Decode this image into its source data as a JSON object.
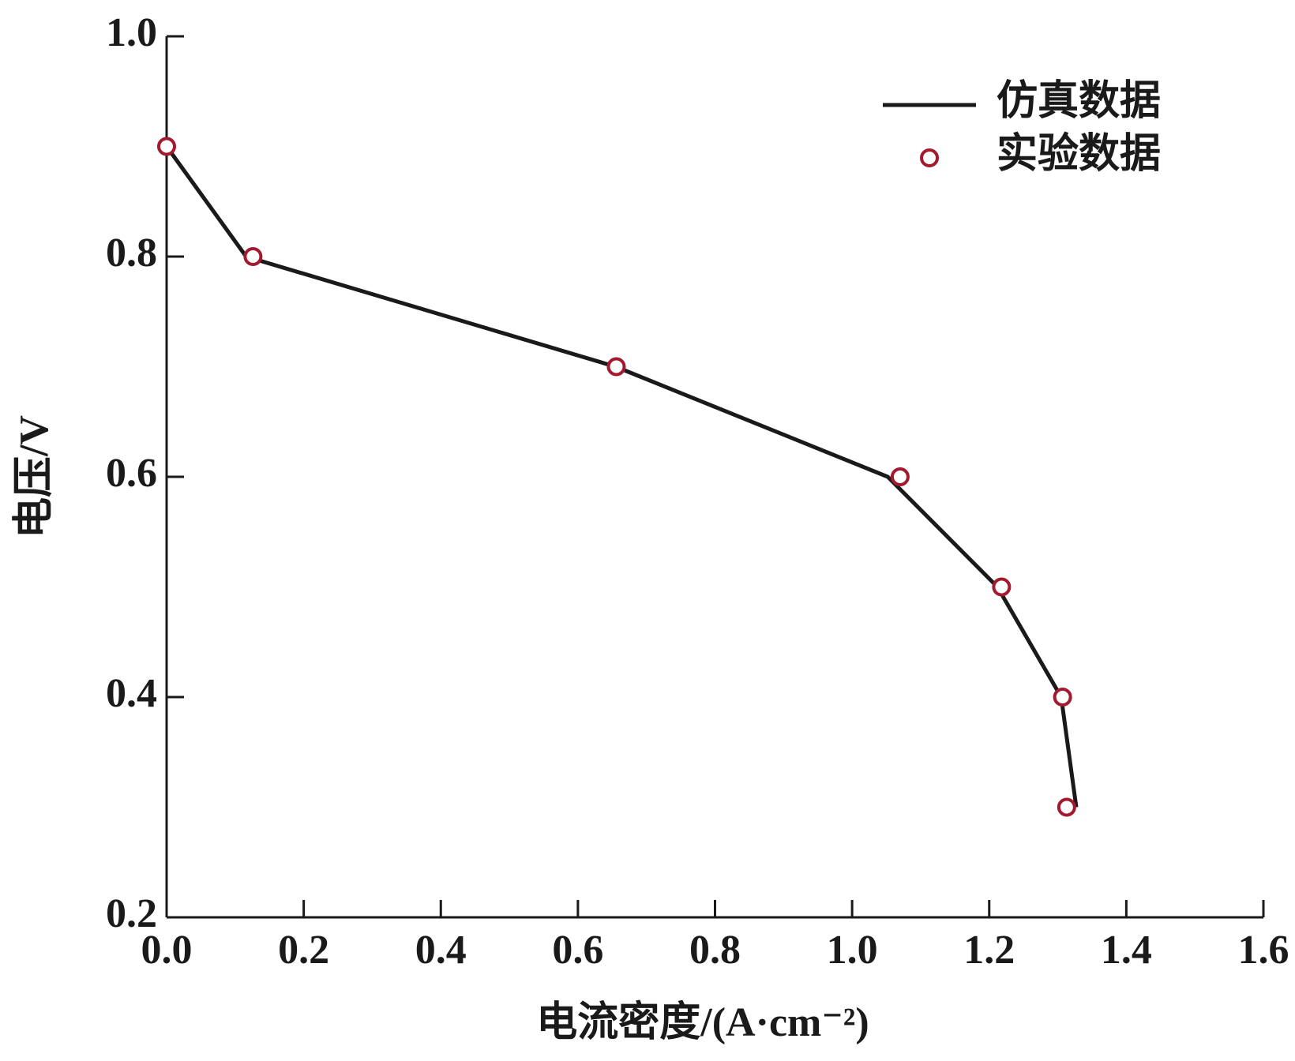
{
  "chart_data": {
    "type": "line",
    "x_label": "电流密度/(A·cm⁻²)",
    "y_label": "电压/V",
    "xlim": [
      0,
      1.6
    ],
    "ylim": [
      0.2,
      1.0
    ],
    "xticks": [
      {
        "value": 0,
        "label": "0.0"
      },
      0.2,
      0.4,
      0.6,
      0.8,
      {
        "value": 1,
        "label": "1.0"
      },
      1.2,
      1.4,
      1.6
    ],
    "yticks": [
      0.2,
      0.4,
      0.6,
      0.8,
      {
        "value": 1,
        "label": "1.0"
      }
    ],
    "legend": "upper right",
    "series": [
      {
        "name": "仿真数据",
        "type": "line",
        "color": "#1a1a1a",
        "x": [
          0,
          0.116,
          0.655,
          1.052,
          1.212,
          1.305,
          1.327
        ],
        "values": [
          0.9,
          0.8,
          0.7,
          0.6,
          0.5,
          0.4,
          0.3
        ]
      },
      {
        "name": "实验数据",
        "type": "scatter",
        "color": "#a3192e",
        "x": [
          0,
          0.126,
          0.656,
          1.07,
          1.218,
          1.307,
          1.313
        ],
        "values": [
          0.9,
          0.8,
          0.7,
          0.6,
          0.5,
          0.4,
          0.3
        ]
      }
    ]
  }
}
